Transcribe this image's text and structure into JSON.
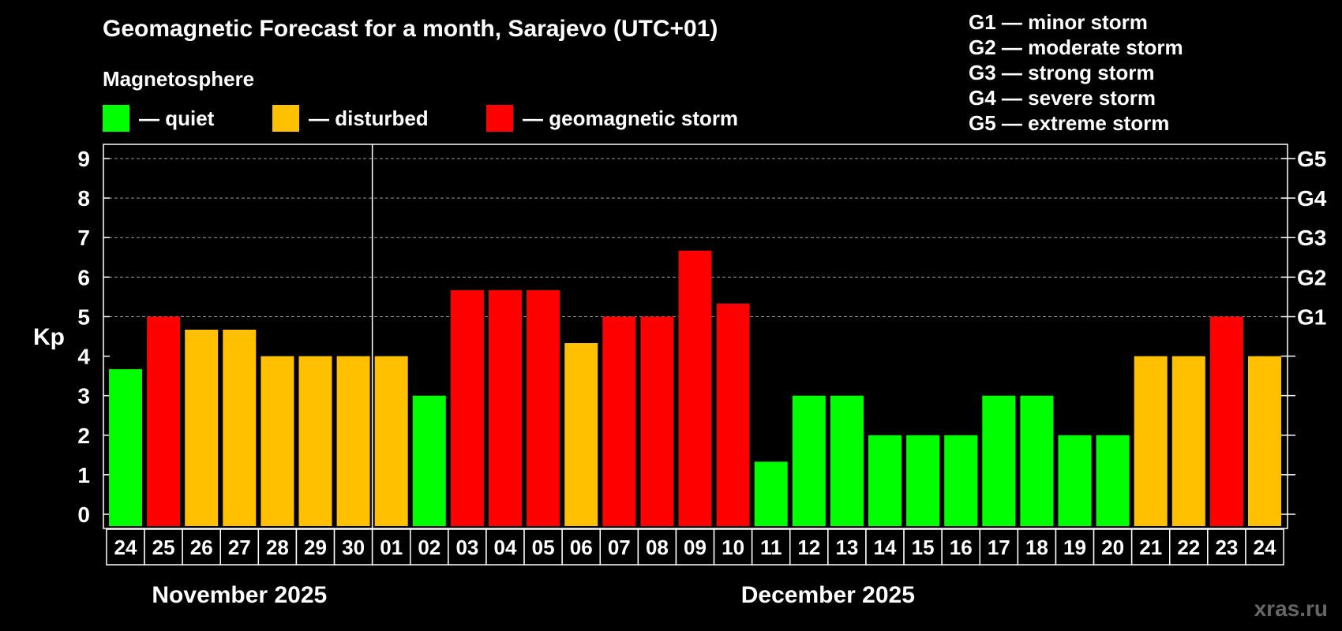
{
  "title": "Geomagnetic Forecast for a month, Sarajevo (UTC+01)",
  "magnetosphere_label": "Magnetosphere",
  "legend": [
    {
      "label": "— quiet",
      "color": "#00ff00"
    },
    {
      "label": "— disturbed",
      "color": "#ffc000"
    },
    {
      "label": "— geomagnetic storm",
      "color": "#ff0000"
    }
  ],
  "storm_levels": [
    "G1 — minor storm",
    "G2 — moderate storm",
    "G3 — strong storm",
    "G4 — severe storm",
    "G5 — extreme storm"
  ],
  "watermark": "xras.ru",
  "chart_data": {
    "type": "bar",
    "ylabel": "Kp",
    "ylim": [
      0,
      9
    ],
    "yticks": [
      "0",
      "1",
      "2",
      "3",
      "4",
      "5",
      "6",
      "7",
      "8",
      "9"
    ],
    "right_ticks": [
      {
        "kp": 5,
        "label": "G1"
      },
      {
        "kp": 6,
        "label": "G2"
      },
      {
        "kp": 7,
        "label": "G3"
      },
      {
        "kp": 8,
        "label": "G4"
      },
      {
        "kp": 9,
        "label": "G5"
      }
    ],
    "grid": "dashed horizontal at Kp 5-9",
    "categories": [
      "24",
      "25",
      "26",
      "27",
      "28",
      "29",
      "30",
      "01",
      "02",
      "03",
      "04",
      "05",
      "06",
      "07",
      "08",
      "09",
      "10",
      "11",
      "12",
      "13",
      "14",
      "15",
      "16",
      "17",
      "18",
      "19",
      "20",
      "21",
      "22",
      "23",
      "24"
    ],
    "values": [
      3.67,
      5,
      4.67,
      4.67,
      4,
      4,
      4,
      4,
      3,
      5.67,
      5.67,
      5.67,
      4.33,
      5,
      5,
      6.67,
      5.33,
      1.33,
      3,
      3,
      2,
      2,
      2,
      3,
      3,
      2,
      2,
      4,
      4,
      5,
      4
    ],
    "status": [
      "quiet",
      "storm",
      "disturbed",
      "disturbed",
      "disturbed",
      "disturbed",
      "disturbed",
      "disturbed",
      "quiet",
      "storm",
      "storm",
      "storm",
      "disturbed",
      "storm",
      "storm",
      "storm",
      "storm",
      "quiet",
      "quiet",
      "quiet",
      "quiet",
      "quiet",
      "quiet",
      "quiet",
      "quiet",
      "quiet",
      "quiet",
      "disturbed",
      "disturbed",
      "storm",
      "disturbed"
    ],
    "status_colors": {
      "quiet": "#00ff00",
      "disturbed": "#ffc000",
      "storm": "#ff0000"
    },
    "months": [
      {
        "label": "November 2025",
        "first_index": 0,
        "last_index": 6
      },
      {
        "label": "December 2025",
        "first_index": 7,
        "last_index": 30
      }
    ]
  }
}
